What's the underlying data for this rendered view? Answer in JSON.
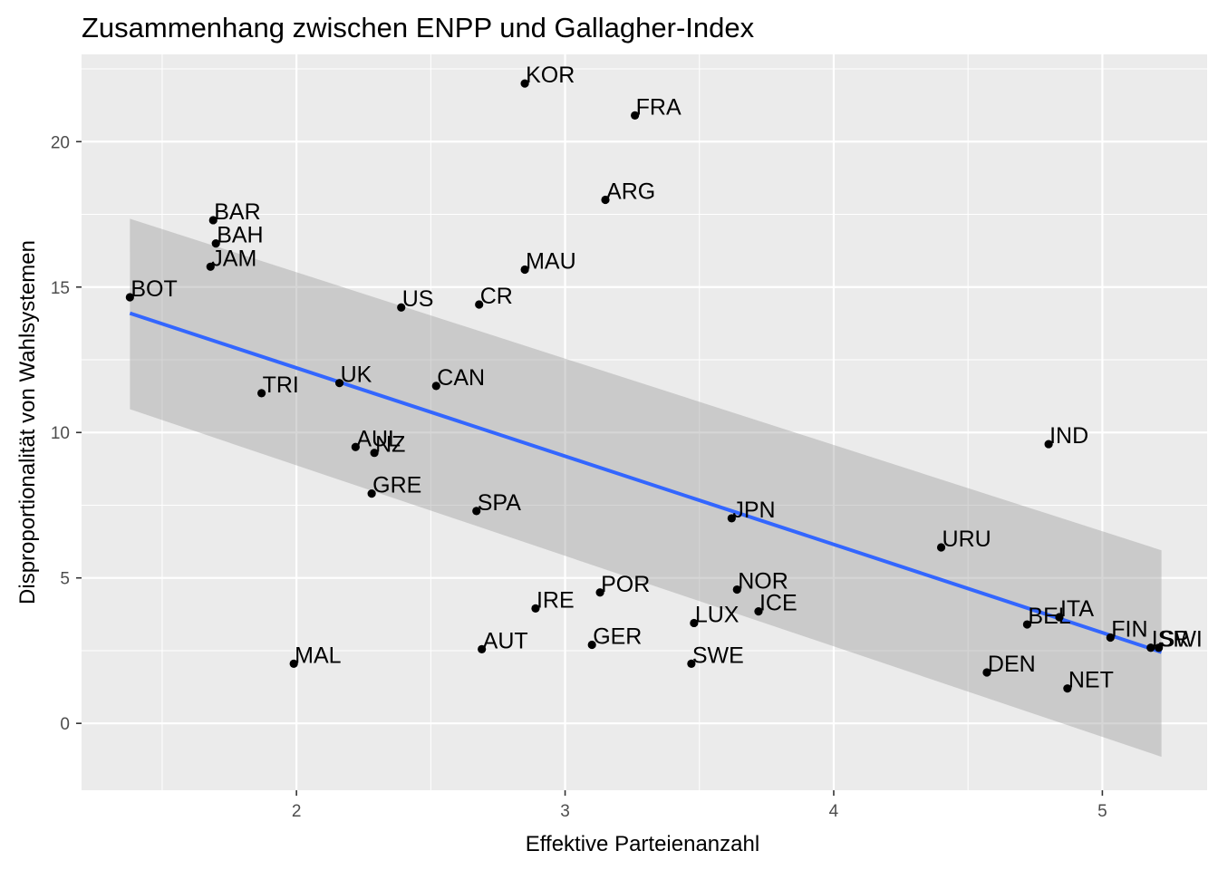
{
  "chart_data": {
    "type": "scatter",
    "title": "Zusammenhang zwischen ENPP und Gallagher-Index",
    "xlabel": "Effektive Parteienanzahl",
    "ylabel": "Disproportionalität von Wahlsystemen",
    "xlim": [
      1.2,
      5.39
    ],
    "ylim": [
      -2.3,
      23.0
    ],
    "x_ticks": [
      2,
      3,
      4,
      5
    ],
    "y_ticks": [
      0,
      5,
      10,
      15,
      20
    ],
    "x_tick_labels": [
      "2",
      "3",
      "4",
      "5"
    ],
    "y_tick_labels": [
      "0",
      "5",
      "10",
      "15",
      "20"
    ],
    "grid": true,
    "background": "#ebebeb",
    "point_color": "#000000",
    "regression": {
      "method": "lm",
      "color": "#3366ff",
      "band_color": "#999999",
      "x_range": [
        1.38,
        5.22
      ],
      "fit": [
        14.1,
        2.45
      ],
      "lower": [
        10.8,
        -1.15
      ],
      "upper": [
        17.35,
        5.95
      ]
    },
    "points": [
      {
        "label": "KOR",
        "x": 2.85,
        "y": 22.0
      },
      {
        "label": "FRA",
        "x": 3.26,
        "y": 20.9
      },
      {
        "label": "ARG",
        "x": 3.15,
        "y": 18.0
      },
      {
        "label": "BAR",
        "x": 1.69,
        "y": 17.3
      },
      {
        "label": "BAH",
        "x": 1.7,
        "y": 16.5
      },
      {
        "label": "JAM",
        "x": 1.68,
        "y": 15.7
      },
      {
        "label": "MAU",
        "x": 2.85,
        "y": 15.6
      },
      {
        "label": "BOT",
        "x": 1.38,
        "y": 14.65
      },
      {
        "label": "US",
        "x": 2.39,
        "y": 14.3
      },
      {
        "label": "CR",
        "x": 2.68,
        "y": 14.4
      },
      {
        "label": "UK",
        "x": 2.16,
        "y": 11.7
      },
      {
        "label": "TRI",
        "x": 1.87,
        "y": 11.35
      },
      {
        "label": "CAN",
        "x": 2.52,
        "y": 11.6
      },
      {
        "label": "IND",
        "x": 4.8,
        "y": 9.6
      },
      {
        "label": "AUL",
        "x": 2.22,
        "y": 9.5
      },
      {
        "label": "NZ",
        "x": 2.29,
        "y": 9.3
      },
      {
        "label": "GRE",
        "x": 2.28,
        "y": 7.9
      },
      {
        "label": "SPA",
        "x": 2.67,
        "y": 7.3
      },
      {
        "label": "JPN",
        "x": 3.62,
        "y": 7.05
      },
      {
        "label": "URU",
        "x": 4.4,
        "y": 6.05
      },
      {
        "label": "POR",
        "x": 3.13,
        "y": 4.5
      },
      {
        "label": "NOR",
        "x": 3.64,
        "y": 4.6
      },
      {
        "label": "IRE",
        "x": 2.89,
        "y": 3.95
      },
      {
        "label": "ICE",
        "x": 3.72,
        "y": 3.85
      },
      {
        "label": "LUX",
        "x": 3.48,
        "y": 3.45
      },
      {
        "label": "ITA",
        "x": 4.84,
        "y": 3.65
      },
      {
        "label": "BEL",
        "x": 4.72,
        "y": 3.4
      },
      {
        "label": "FIN",
        "x": 5.03,
        "y": 2.95
      },
      {
        "label": "AUT",
        "x": 2.69,
        "y": 2.55
      },
      {
        "label": "GER",
        "x": 3.1,
        "y": 2.7
      },
      {
        "label": "ISR",
        "x": 5.18,
        "y": 2.6
      },
      {
        "label": "SWI",
        "x": 5.21,
        "y": 2.6
      },
      {
        "label": "MAL",
        "x": 1.99,
        "y": 2.05
      },
      {
        "label": "SWE",
        "x": 3.47,
        "y": 2.05
      },
      {
        "label": "DEN",
        "x": 4.57,
        "y": 1.75
      },
      {
        "label": "NET",
        "x": 4.87,
        "y": 1.2
      }
    ]
  }
}
